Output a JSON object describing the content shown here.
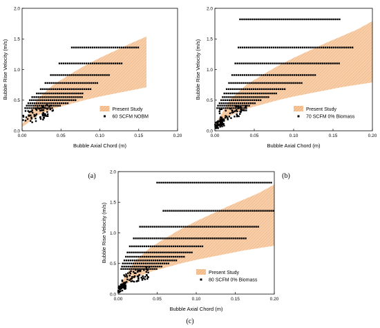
{
  "colors": {
    "band_fill": "#f6c79c",
    "band_hatch": "#ec9d5c",
    "marker": "#000000",
    "axis": "#000000"
  },
  "charts": [
    {
      "panel_label": "(a)",
      "type": "scatter",
      "xlabel": "Bubble Axial Chord (m)",
      "ylabel": "Bubble Rise Velocity (m/s)",
      "xlim": [
        0,
        0.2
      ],
      "ylim": [
        0,
        2.0
      ],
      "xticks": [
        "0.00",
        "0.05",
        "0.10",
        "0.15",
        "0.20"
      ],
      "yticks": [
        "0.0",
        "0.5",
        "1.0",
        "1.5",
        "2.0"
      ],
      "legend_position": "bottom-right",
      "legend": [
        "Present Study",
        "60 SCFM NOBM"
      ],
      "band": {
        "x": [
          0.0,
          0.02,
          0.04,
          0.06,
          0.08,
          0.1,
          0.12,
          0.14,
          0.16
        ],
        "lower": [
          0.06,
          0.25,
          0.36,
          0.43,
          0.5,
          0.56,
          0.61,
          0.66,
          0.71
        ],
        "upper": [
          0.1,
          0.52,
          0.75,
          0.91,
          1.06,
          1.19,
          1.31,
          1.43,
          1.54
        ]
      },
      "levels": [
        {
          "y": 1.36,
          "xmin": 0.064,
          "xmax": 0.15
        },
        {
          "y": 1.1,
          "xmin": 0.048,
          "xmax": 0.13
        },
        {
          "y": 0.91,
          "xmin": 0.037,
          "xmax": 0.112
        },
        {
          "y": 0.78,
          "xmin": 0.03,
          "xmax": 0.098
        },
        {
          "y": 0.68,
          "xmin": 0.024,
          "xmax": 0.088
        },
        {
          "y": 0.61,
          "xmin": 0.019,
          "xmax": 0.08
        },
        {
          "y": 0.55,
          "xmin": 0.013,
          "xmax": 0.078
        },
        {
          "y": 0.5,
          "xmin": 0.01,
          "xmax": 0.07
        },
        {
          "y": 0.45,
          "xmin": 0.008,
          "xmax": 0.06
        },
        {
          "y": 0.41,
          "xmin": 0.006,
          "xmax": 0.05
        },
        {
          "y": 0.37,
          "xmin": 0.004,
          "xmax": 0.04
        }
      ],
      "scatter": [
        {
          "xmin": 0.001,
          "xmax": 0.04,
          "ymin": 0.1,
          "ymax": 0.45,
          "n": 70
        }
      ]
    },
    {
      "panel_label": "(b)",
      "type": "scatter",
      "xlabel": "Bubble Axial Chord (m)",
      "ylabel": "Bubble Rise Velocity (m/s)",
      "xlim": [
        0,
        0.2
      ],
      "ylim": [
        0,
        2.0
      ],
      "xticks": [
        "0.00",
        "0.05",
        "0.10",
        "0.15",
        "0.20"
      ],
      "yticks": [
        "0.0",
        "0.5",
        "1.0",
        "1.5",
        "2.0"
      ],
      "legend_position": "bottom-right",
      "legend": [
        "Present Study",
        "70 SCFM 0% Biomass"
      ],
      "band": {
        "x": [
          0.0,
          0.02,
          0.04,
          0.06,
          0.08,
          0.1,
          0.12,
          0.14,
          0.16,
          0.18,
          0.2
        ],
        "lower": [
          0.06,
          0.25,
          0.36,
          0.43,
          0.5,
          0.56,
          0.61,
          0.66,
          0.71,
          0.75,
          0.79
        ],
        "upper": [
          0.1,
          0.52,
          0.75,
          0.91,
          1.06,
          1.19,
          1.31,
          1.43,
          1.54,
          1.65,
          1.79
        ]
      },
      "levels": [
        {
          "y": 1.82,
          "xmin": 0.032,
          "xmax": 0.16
        },
        {
          "y": 1.36,
          "xmin": 0.03,
          "xmax": 0.175
        },
        {
          "y": 1.1,
          "xmin": 0.026,
          "xmax": 0.158
        },
        {
          "y": 0.91,
          "xmin": 0.022,
          "xmax": 0.128
        },
        {
          "y": 0.78,
          "xmin": 0.018,
          "xmax": 0.112
        },
        {
          "y": 0.68,
          "xmin": 0.015,
          "xmax": 0.09
        },
        {
          "y": 0.61,
          "xmin": 0.012,
          "xmax": 0.08
        },
        {
          "y": 0.55,
          "xmin": 0.01,
          "xmax": 0.07
        },
        {
          "y": 0.5,
          "xmin": 0.008,
          "xmax": 0.06
        },
        {
          "y": 0.45,
          "xmin": 0.006,
          "xmax": 0.052
        },
        {
          "y": 0.41,
          "xmin": 0.004,
          "xmax": 0.046
        },
        {
          "y": 0.37,
          "xmin": 0.003,
          "xmax": 0.04
        }
      ],
      "scatter": [
        {
          "xmin": 0.0,
          "xmax": 0.012,
          "ymin": 0.02,
          "ymax": 0.2,
          "n": 60
        },
        {
          "xmin": 0.005,
          "xmax": 0.04,
          "ymin": 0.15,
          "ymax": 0.45,
          "n": 55
        }
      ]
    },
    {
      "panel_label": "(c)",
      "type": "scatter",
      "xlabel": "Bubble Axial Chord (m)",
      "ylabel": "Bubble Rise Velocity (m/s)",
      "xlim": [
        0,
        0.2
      ],
      "ylim": [
        0,
        2.0
      ],
      "xticks": [
        "0.00",
        "0.05",
        "0.10",
        "0.15",
        "0.20"
      ],
      "yticks": [
        "0.0",
        "0.5",
        "1.0",
        "1.5",
        "2.0"
      ],
      "legend_position": "bottom-right",
      "legend": [
        "Present Study",
        "80 SCFM 0% Biomass"
      ],
      "band": {
        "x": [
          0.0,
          0.02,
          0.04,
          0.06,
          0.08,
          0.1,
          0.12,
          0.14,
          0.16,
          0.18,
          0.2
        ],
        "lower": [
          0.06,
          0.25,
          0.36,
          0.43,
          0.5,
          0.56,
          0.61,
          0.66,
          0.71,
          0.75,
          0.79
        ],
        "upper": [
          0.1,
          0.52,
          0.75,
          0.91,
          1.06,
          1.19,
          1.31,
          1.43,
          1.54,
          1.65,
          1.79
        ]
      },
      "levels": [
        {
          "y": 1.82,
          "xmin": 0.05,
          "xmax": 0.197
        },
        {
          "y": 1.36,
          "xmin": 0.058,
          "xmax": 0.2
        },
        {
          "y": 1.1,
          "xmin": 0.028,
          "xmax": 0.18
        },
        {
          "y": 0.91,
          "xmin": 0.02,
          "xmax": 0.165
        },
        {
          "y": 0.78,
          "xmin": 0.015,
          "xmax": 0.11
        },
        {
          "y": 0.68,
          "xmin": 0.012,
          "xmax": 0.095
        },
        {
          "y": 0.61,
          "xmin": 0.01,
          "xmax": 0.085
        },
        {
          "y": 0.55,
          "xmin": 0.008,
          "xmax": 0.075
        },
        {
          "y": 0.5,
          "xmin": 0.006,
          "xmax": 0.065
        },
        {
          "y": 0.45,
          "xmin": 0.005,
          "xmax": 0.058
        },
        {
          "y": 0.41,
          "xmin": 0.004,
          "xmax": 0.05
        }
      ],
      "scatter": [
        {
          "xmin": 0.0,
          "xmax": 0.01,
          "ymin": 0.02,
          "ymax": 0.2,
          "n": 50
        },
        {
          "xmin": 0.005,
          "xmax": 0.04,
          "ymin": 0.15,
          "ymax": 0.45,
          "n": 65
        }
      ]
    }
  ]
}
